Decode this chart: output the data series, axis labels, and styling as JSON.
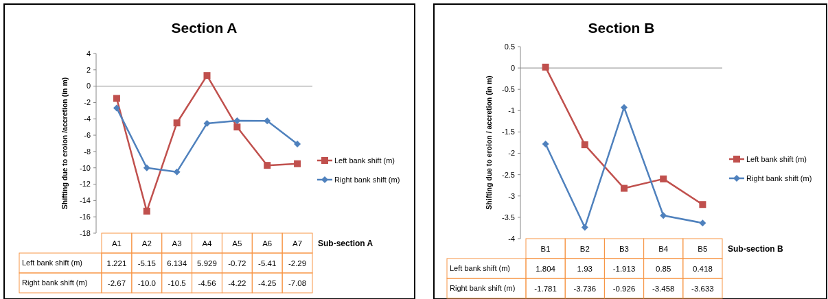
{
  "chart_data": [
    {
      "type": "line",
      "title": "Section A",
      "ylabel": "Shifting due to eroion /accretion (in m)",
      "xlabel": "Sub-section A",
      "annotations": [
        "1.221",
        "-5.15",
        "6.134",
        "5.929",
        "-0.72",
        "-5.41",
        "-2.29"
      ],
      "categories": [
        "A1",
        "A2",
        "A3",
        "A4",
        "A5",
        "A6",
        "A7"
      ],
      "ylim": [
        -18,
        4
      ],
      "yticks": [
        4,
        2,
        0,
        -2,
        -4,
        -6,
        -8,
        -10,
        -12,
        -14,
        -16,
        -18
      ],
      "legend": "right",
      "series": [
        {
          "name": "Left bank shift (m)",
          "color": "#c0504d",
          "marker": "square",
          "values": [
            -1.5,
            -15.3,
            -4.5,
            1.3,
            -5.0,
            -9.7,
            -9.5
          ]
        },
        {
          "name": "Right bank shift (m)",
          "color": "#4f81bd",
          "marker": "diamond",
          "values": [
            -2.67,
            -10.0,
            -10.5,
            -4.56,
            -4.22,
            -4.25,
            -7.08
          ],
          "value_labels": [
            "-2.67",
            "-10.0",
            "-10.5",
            "-4.56",
            "-4.22",
            "-4.25",
            "-7.08"
          ]
        }
      ]
    },
    {
      "type": "line",
      "title": "Section B",
      "ylabel": "Shifting due to eroion / accretion  (in m)",
      "xlabel": "Sub-section B",
      "annotations": [
        "1.804",
        "1.93",
        "-1.913",
        "0.85",
        "0.418"
      ],
      "categories": [
        "B1",
        "B2",
        "B3",
        "B4",
        "B5"
      ],
      "ylim": [
        -4,
        0.5
      ],
      "yticks": [
        0.5,
        0,
        -0.5,
        -1,
        -1.5,
        -2,
        -2.5,
        -3,
        -3.5,
        -4
      ],
      "legend": "right",
      "series": [
        {
          "name": "Left bank shift (m)",
          "color": "#c0504d",
          "marker": "square",
          "values": [
            0.02,
            -1.8,
            -2.82,
            -2.6,
            -3.2
          ]
        },
        {
          "name": "Right bank shift (m)",
          "color": "#4f81bd",
          "marker": "diamond",
          "values": [
            -1.781,
            -3.736,
            -0.926,
            -3.458,
            -3.633
          ],
          "value_labels": [
            "-1.781",
            "-3.736",
            "-0.926",
            "-3.458",
            "-3.633"
          ]
        }
      ]
    }
  ]
}
